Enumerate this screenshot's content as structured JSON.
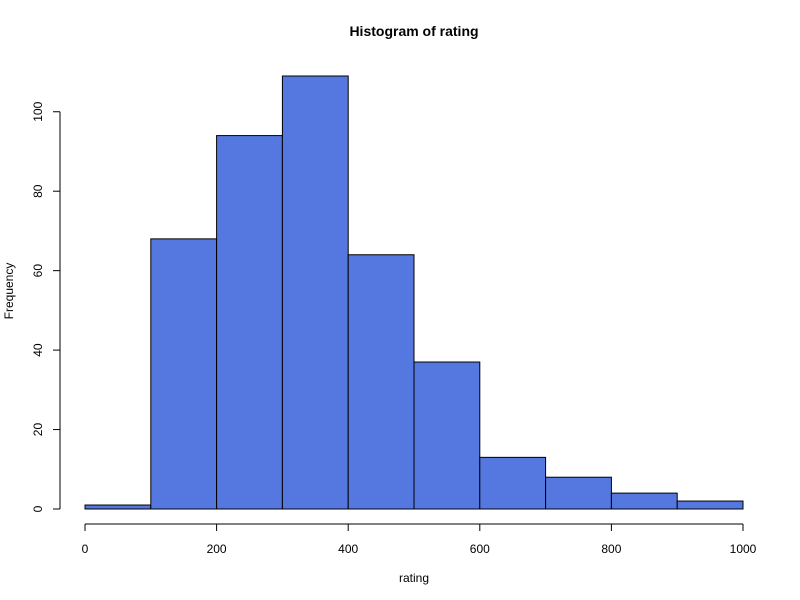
{
  "chart_data": {
    "type": "bar",
    "title": "Histogram of  rating",
    "xlabel": "rating",
    "ylabel": "Frequency",
    "bin_edges": [
      0,
      100,
      200,
      300,
      400,
      500,
      600,
      700,
      800,
      900,
      1000
    ],
    "values": [
      1,
      68,
      94,
      109,
      64,
      37,
      13,
      8,
      4,
      2
    ],
    "xlim": [
      0,
      1000
    ],
    "ylim": [
      0,
      109
    ],
    "x_ticks": [
      0,
      200,
      400,
      600,
      800,
      1000
    ],
    "y_ticks": [
      0,
      20,
      40,
      60,
      80,
      100
    ],
    "bar_color": "#5578E0",
    "grid": false,
    "legend": "none"
  }
}
